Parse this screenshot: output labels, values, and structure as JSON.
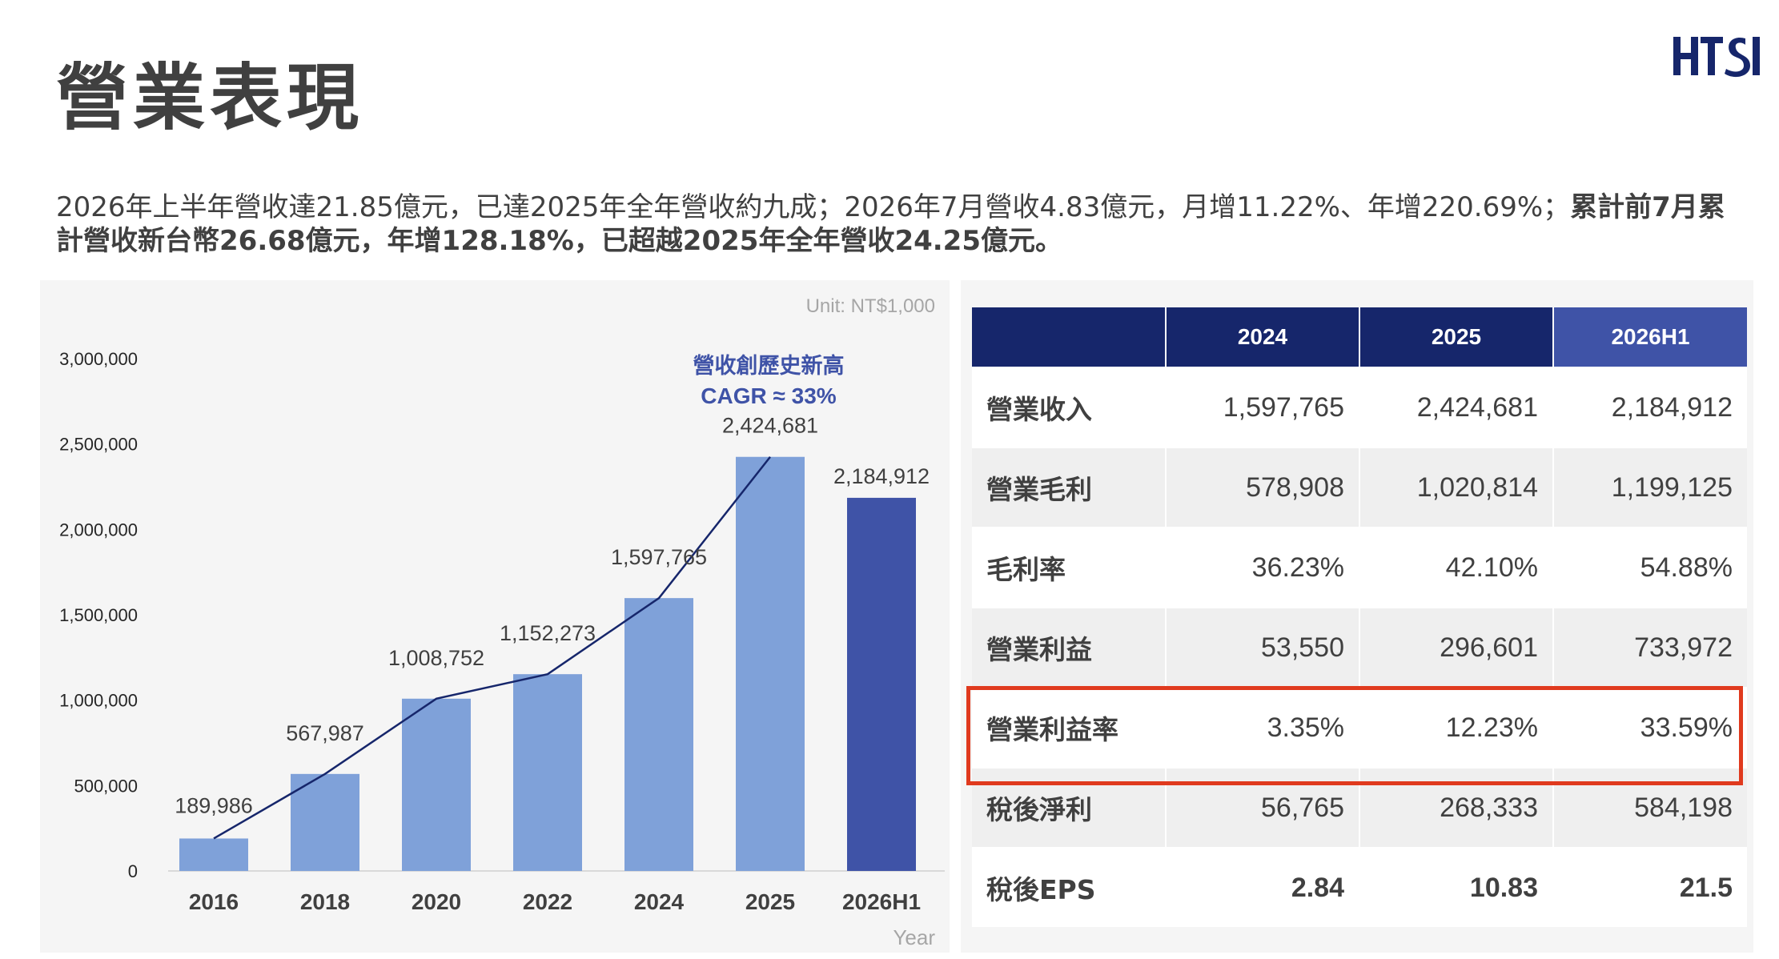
{
  "page": {
    "title": "營業表現",
    "logo_text": "HTSI",
    "summary_normal": "2026年上半年營收達21.85億元，已達2025年全年營收約九成；2026年7月營收4.83億元，月增11.22%、年增220.69%；",
    "summary_bold": "累計前7月累計營收新台幣26.68億元，年增128.18%，已超越2025年全年營收24.25億元。"
  },
  "colors": {
    "bar": "#7fa1d9",
    "bar_highlight": "#3f53a7",
    "line": "#16266b",
    "annotation": "#3f53a7",
    "table_header": "#16266b",
    "table_header_highlight": "#3f53a7",
    "highlight_box": "#e03a1e"
  },
  "chart_data": {
    "type": "bar",
    "title": "",
    "unit_label": "Unit: NT$1,000",
    "xlabel": "Year",
    "ylabel": "",
    "categories": [
      "2016",
      "2018",
      "2020",
      "2022",
      "2024",
      "2025",
      "2026H1"
    ],
    "values": [
      189986,
      567987,
      1008752,
      1152273,
      1597765,
      2424681,
      2184912
    ],
    "value_labels": [
      "189,986",
      "567,987",
      "1,008,752",
      "1,152,273",
      "1,597,765",
      "2,424,681",
      "2,184,912"
    ],
    "highlighted_category": "2026H1",
    "trend_line": {
      "categories": [
        "2016",
        "2018",
        "2020",
        "2022",
        "2024",
        "2025"
      ],
      "values": [
        189986,
        567987,
        1008752,
        1152273,
        1597765,
        2424681
      ]
    },
    "annotation": [
      "營收創歷史新高",
      "CAGR ≈ 33%"
    ],
    "ylim": [
      0,
      3000000
    ],
    "yticks": [
      0,
      500000,
      1000000,
      1500000,
      2000000,
      2500000,
      3000000
    ],
    "ytick_labels": [
      "0",
      "500,000",
      "1,000,000",
      "1,500,000",
      "2,000,000",
      "2,500,000",
      "3,000,000"
    ],
    "grid": false
  },
  "table": {
    "headers": [
      "",
      "2024",
      "2025",
      "2026H1"
    ],
    "rows": [
      {
        "label": "營業收入",
        "values": [
          "1,597,765",
          "2,424,681",
          "2,184,912"
        ]
      },
      {
        "label": "營業毛利",
        "values": [
          "578,908",
          "1,020,814",
          "1,199,125"
        ]
      },
      {
        "label": "毛利率",
        "values": [
          "36.23%",
          "42.10%",
          "54.88%"
        ]
      },
      {
        "label": "營業利益",
        "values": [
          "53,550",
          "296,601",
          "733,972"
        ]
      },
      {
        "label": "營業利益率",
        "values": [
          "3.35%",
          "12.23%",
          "33.59%"
        ]
      },
      {
        "label": "稅後淨利",
        "values": [
          "56,765",
          "268,333",
          "584,198"
        ]
      },
      {
        "label": "稅後EPS",
        "values": [
          "2.84",
          "10.83",
          "21.5"
        ]
      }
    ],
    "highlighted_row": "營業利益率"
  }
}
